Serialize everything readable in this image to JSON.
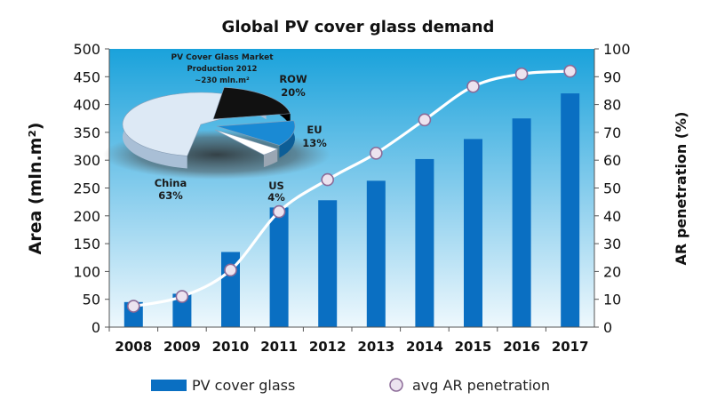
{
  "chart_data": {
    "type": "bar",
    "title": "Global PV cover glass demand",
    "categories": [
      "2008",
      "2009",
      "2010",
      "2011",
      "2012",
      "2013",
      "2014",
      "2015",
      "2016",
      "2017"
    ],
    "series": [
      {
        "name": "PV cover glass",
        "axis": "left",
        "type": "bar",
        "values": [
          45,
          60,
          135,
          215,
          228,
          263,
          302,
          338,
          375,
          420
        ]
      },
      {
        "name": "avg AR penetration",
        "axis": "right",
        "type": "line",
        "values": [
          7.5,
          11,
          20.5,
          41.5,
          53,
          62.5,
          74.5,
          86.5,
          91,
          92
        ]
      }
    ],
    "ylabel": "Area (mln.m²)",
    "y2label": "AR penetration (%)",
    "ylim": [
      0,
      500
    ],
    "y2lim": [
      0,
      100
    ],
    "yticks": [
      "0",
      "50",
      "100",
      "150",
      "200",
      "250",
      "300",
      "350",
      "400",
      "450",
      "500"
    ],
    "y2ticks": [
      "0",
      "10",
      "20",
      "30",
      "40",
      "50",
      "60",
      "70",
      "80",
      "90",
      "100"
    ],
    "grid": false,
    "legend": "bottom",
    "colors": {
      "bar": "#0a6fc2",
      "line": "#ffffff",
      "marker_fill": "#ece3ef",
      "marker_edge": "#8b6a97",
      "plot_top": "#1ba3dc",
      "plot_bottom": "#e8f6fc"
    },
    "inset_pie": {
      "title": "PV Cover Glass Market",
      "subtitle": "Production 2012",
      "note": "~230 mln.m²",
      "slices": [
        {
          "label": "China",
          "value": 63,
          "value_label": "63%",
          "color": "#dde9f5"
        },
        {
          "label": "ROW",
          "value": 20,
          "value_label": "20%",
          "color": "#111111"
        },
        {
          "label": "EU",
          "value": 13,
          "value_label": "13%",
          "color": "#1a8ad4"
        },
        {
          "label": "US",
          "value": 4,
          "value_label": "4%",
          "color": "#ffffff"
        }
      ]
    }
  }
}
